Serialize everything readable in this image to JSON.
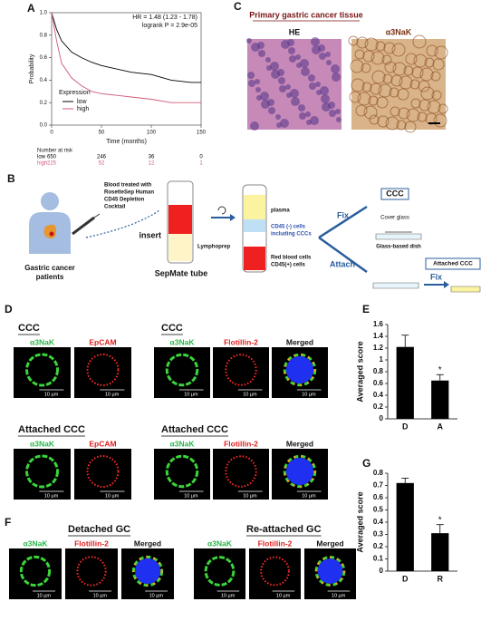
{
  "panel_labels": [
    "A",
    "B",
    "C",
    "D",
    "E",
    "F",
    "G"
  ],
  "chart_data": [
    {
      "type": "line",
      "annotations": [
        "HR = 1.48 (1.23 - 1.78)",
        "logrank P = 2.9e-05"
      ],
      "x_label": "Time (months)",
      "y_label": "Probability",
      "x": [
        0,
        5,
        10,
        20,
        30,
        40,
        50,
        60,
        80,
        100,
        120,
        140,
        150
      ],
      "series": [
        {
          "name": "low",
          "color": "#000000",
          "values": [
            1.0,
            0.85,
            0.75,
            0.65,
            0.6,
            0.56,
            0.53,
            0.51,
            0.47,
            0.45,
            0.4,
            0.38,
            0.38
          ]
        },
        {
          "name": "high",
          "color": "#d05a78",
          "values": [
            1.0,
            0.75,
            0.55,
            0.42,
            0.35,
            0.3,
            0.28,
            0.27,
            0.25,
            0.23,
            0.2,
            0.2,
            0.2
          ]
        }
      ],
      "xlim": [
        0,
        150
      ],
      "xticks": [
        0,
        50,
        100,
        150
      ],
      "ylim": [
        0,
        1
      ],
      "yticks": [
        {
          "value": 0,
          "label": "0.0"
        },
        0.2,
        0.4,
        0.6,
        0.8,
        {
          "value": 1,
          "label": "1.0"
        }
      ],
      "legend_title": "Expression",
      "legend": "lower-left",
      "risk_table": {
        "title": "Number at risk",
        "values": [
          [
            650,
            246,
            36,
            0
          ],
          [
            225,
            52,
            12,
            1
          ]
        ]
      }
    },
    {
      "type": "bar",
      "y_label": "Averaged score",
      "categories": [
        "D",
        "A"
      ],
      "values": [
        1.22,
        0.65
      ],
      "errors": [
        0.2,
        0.1
      ],
      "star_labels": [
        null,
        "*"
      ],
      "color": "#000000",
      "ylim": [
        0,
        1.6
      ],
      "yticks": [
        0,
        0.2,
        0.4,
        0.6,
        0.8,
        1,
        1.2,
        1.4,
        1.6
      ]
    },
    {
      "type": "bar",
      "y_label": "Averaged score",
      "categories": [
        "D",
        "R"
      ],
      "values": [
        0.72,
        0.31
      ],
      "errors": [
        0.04,
        0.07
      ],
      "star_labels": [
        null,
        "*"
      ],
      "color": "#000000",
      "ylim": [
        0,
        0.8
      ],
      "yticks": [
        0,
        0.1,
        0.2,
        0.3,
        0.4,
        0.5,
        0.6,
        0.7,
        0.8
      ]
    }
  ],
  "panel_b": {
    "patient": [
      "Gastric cancer",
      "patients"
    ],
    "treatment": [
      "Blood treated with",
      "RosetteSep Human",
      "CD45 Depletion",
      "Cocktail"
    ],
    "insert": "insert",
    "lymphoprep": "Lymphoprep",
    "tube": "SepMate tube",
    "plasma": "plasma",
    "ccc_layer": [
      "CD45 (-) cells",
      "including CCCs"
    ],
    "rbc_layer": [
      "Red blood cells",
      "CD45(+) cells"
    ],
    "steps": [
      "Fix",
      "Attach",
      "Fix"
    ],
    "ccc_box": "CCC",
    "cover_glass": "Cover glass",
    "dish": "Glass-based dish",
    "attached_box": "Attached CCC"
  },
  "panel_c": {
    "title": "Primary gastric cancer tissue",
    "images": [
      "HE",
      "α3NaK"
    ]
  },
  "panel_d": {
    "groups": [
      {
        "title": "CCC",
        "channels": [
          "α3NaK",
          "EpCAM"
        ],
        "scale_bar": "10 µm"
      },
      {
        "title": "CCC",
        "channels": [
          "α3NaK",
          "Flotillin-2",
          "Merged"
        ],
        "scale_bar": "10 µm"
      },
      {
        "title": "Attached CCC",
        "channels": [
          "α3NaK",
          "EpCAM"
        ],
        "scale_bar": "10 µm"
      },
      {
        "title": "Attached CCC",
        "channels": [
          "α3NaK",
          "Flotillin-2",
          "Merged"
        ],
        "scale_bar": "10 µm"
      }
    ]
  },
  "panel_f": {
    "groups": [
      {
        "title": "Detached GC",
        "channels": [
          "α3NaK",
          "Flotillin-2",
          "Merged"
        ],
        "scale_bar": "10 µm"
      },
      {
        "title": "Re-attached GC",
        "channels": [
          "α3NaK",
          "Flotillin-2",
          "Merged"
        ],
        "scale_bar": "10 µm"
      }
    ]
  }
}
